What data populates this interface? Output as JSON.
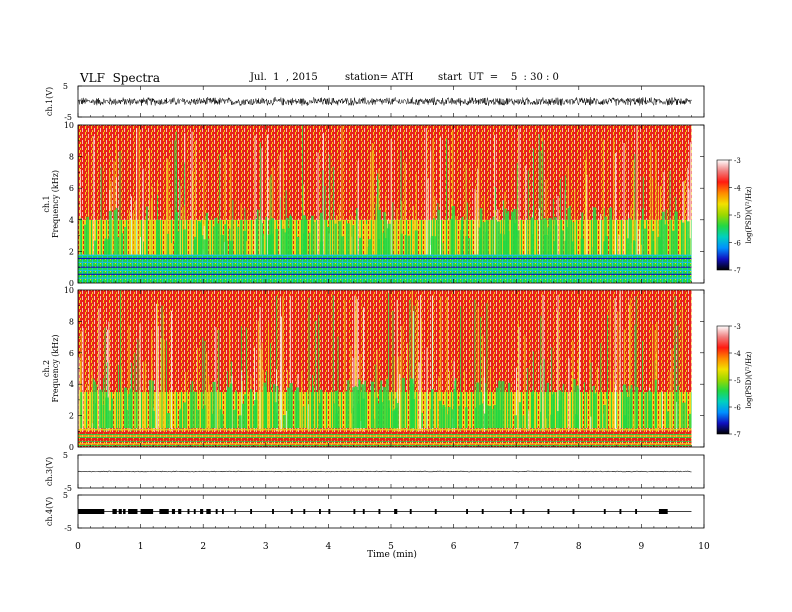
{
  "header": {
    "title": "VLF  Spectra",
    "date": "Jul.  1  , 2015",
    "station": "station= ATH",
    "start_ut": "start  UT  =    5  : 30 : 0"
  },
  "colorbar_label": "log(PSD)(V²/Hz)",
  "colors": {
    "background": "#ffffff",
    "spectrogram_high": "#e8221a",
    "spectrogram_mid": "#f2d21a",
    "spectrogram_low": "#22d844",
    "colorbar_stops": [
      "#000000",
      "#1010c0",
      "#0090ff",
      "#00d0c0",
      "#22d844",
      "#9ad800",
      "#f2e000",
      "#ff8a00",
      "#ff1a10",
      "#f08080",
      "#ffffff"
    ]
  },
  "chart_data": [
    {
      "type": "line",
      "panel": "ch1-waveform",
      "ylabel": "ch.1(V)",
      "ylim": [
        -5,
        5
      ],
      "yticks": [
        "5",
        "-5"
      ],
      "xlim": [
        0,
        10
      ],
      "description_amplitude": [
        -1.5,
        1.5
      ],
      "series": [
        {
          "duration_min": 9.8,
          "amplitude_range_V": [
            -1.5,
            1.5
          ]
        }
      ]
    },
    {
      "type": "heatmap",
      "panel": "ch1-spectrogram",
      "ylabel": "Frequency  (kHz)",
      "channel_label": "ch.1",
      "ylim": [
        0,
        10
      ],
      "yticks": [
        "0",
        "2",
        "4",
        "6",
        "8",
        "10"
      ],
      "xlim": [
        0,
        10
      ],
      "colorbar": {
        "range": [
          -7,
          -3
        ],
        "ticks": [
          "-3",
          "-4",
          "-5",
          "-6",
          "-7"
        ]
      },
      "bands": [
        {
          "freq_kHz": [
            0,
            1.8
          ],
          "logPSD": -5.8
        },
        {
          "freq_kHz": [
            1.8,
            4.0
          ],
          "logPSD": -4.8
        },
        {
          "freq_kHz": [
            4.0,
            10
          ],
          "logPSD": -3.8
        }
      ]
    },
    {
      "type": "heatmap",
      "panel": "ch2-spectrogram",
      "ylabel": "Frequency  (kHz)",
      "channel_label": "ch.2",
      "ylim": [
        0,
        10
      ],
      "yticks": [
        "0",
        "2",
        "4",
        "6",
        "8",
        "10"
      ],
      "xlim": [
        0,
        10
      ],
      "colorbar": {
        "range": [
          -7,
          -3
        ],
        "ticks": [
          "-3",
          "-4",
          "-5",
          "-6",
          "-7"
        ]
      },
      "bands": [
        {
          "freq_kHz": [
            0,
            1.2
          ],
          "logPSD": -4.2
        },
        {
          "freq_kHz": [
            1.2,
            3.5
          ],
          "logPSD": -4.9
        },
        {
          "freq_kHz": [
            3.5,
            10
          ],
          "logPSD": -3.8
        }
      ]
    },
    {
      "type": "line",
      "panel": "ch3-waveform",
      "ylabel": "ch.3(V)",
      "ylim": [
        -5,
        5
      ],
      "yticks": [
        "5",
        "-5"
      ],
      "xlim": [
        0,
        10
      ],
      "series": [
        {
          "value_V": 0
        }
      ]
    },
    {
      "type": "line",
      "panel": "ch4-waveform",
      "ylabel": "ch.4(V)",
      "ylim": [
        -5,
        5
      ],
      "yticks": [
        "5",
        "-5"
      ],
      "xlim": [
        0,
        10
      ],
      "series": [
        {
          "value_V": 0
        }
      ],
      "pulse_intervals_min": [
        [
          0.0,
          0.42
        ],
        [
          0.55,
          0.62
        ],
        [
          0.65,
          0.7
        ],
        [
          0.72,
          0.76
        ],
        [
          0.8,
          0.95
        ],
        [
          1.0,
          1.2
        ],
        [
          1.3,
          1.45
        ],
        [
          1.5,
          1.55
        ],
        [
          1.6,
          1.65
        ],
        [
          1.75,
          1.78
        ],
        [
          1.85,
          1.88
        ],
        [
          1.95,
          2.0
        ],
        [
          2.05,
          2.12
        ],
        [
          2.2,
          2.23
        ],
        [
          2.3,
          2.33
        ],
        [
          2.5,
          2.52
        ],
        [
          2.75,
          2.78
        ],
        [
          3.1,
          3.13
        ],
        [
          3.4,
          3.43
        ],
        [
          3.6,
          3.63
        ],
        [
          3.85,
          3.88
        ],
        [
          4.0,
          4.03
        ],
        [
          4.4,
          4.43
        ],
        [
          4.55,
          4.58
        ],
        [
          4.8,
          4.83
        ],
        [
          5.05,
          5.1
        ],
        [
          5.3,
          5.33
        ],
        [
          5.7,
          5.73
        ],
        [
          6.2,
          6.23
        ],
        [
          6.45,
          6.48
        ],
        [
          6.9,
          6.93
        ],
        [
          7.1,
          7.13
        ],
        [
          7.5,
          7.53
        ],
        [
          7.9,
          7.93
        ],
        [
          8.4,
          8.43
        ],
        [
          8.65,
          8.68
        ],
        [
          8.9,
          8.93
        ],
        [
          9.28,
          9.42
        ]
      ]
    }
  ],
  "xaxis": {
    "label": "Time  (min)",
    "ticks": [
      "0",
      "1",
      "2",
      "3",
      "4",
      "5",
      "6",
      "7",
      "8",
      "9",
      "10"
    ],
    "range": [
      0,
      10
    ]
  }
}
